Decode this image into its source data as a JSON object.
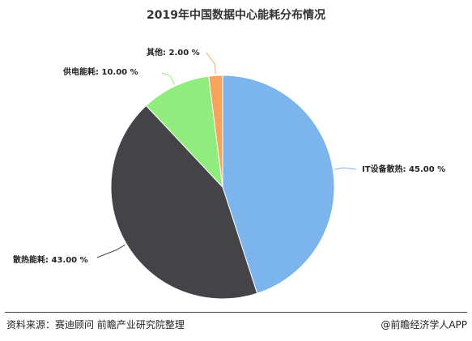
{
  "chart_data": {
    "type": "pie",
    "title": "2019年中国数据中心能耗分布情况",
    "slices": [
      {
        "label": "IT设备散热",
        "value": 45.0,
        "display": "IT设备散热: 45.00 %",
        "color": "#7cb5ec"
      },
      {
        "label": "散热能耗",
        "value": 43.0,
        "display": "散热能耗: 43.00 %",
        "color": "#434348"
      },
      {
        "label": "供电能耗",
        "value": 10.0,
        "display": "供电能耗: 10.00 %",
        "color": "#90ed7d"
      },
      {
        "label": "其他",
        "value": 2.0,
        "display": "其他: 2.00 %",
        "color": "#f7a35c"
      }
    ],
    "legend": "none",
    "grid": false
  },
  "footer": {
    "source": "资料来源：赛迪顾问 前瞻产业研究院整理",
    "brand": "@前瞻经济学人APP"
  }
}
